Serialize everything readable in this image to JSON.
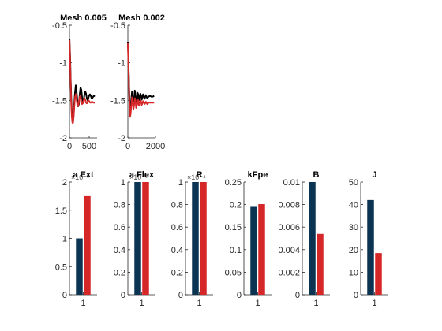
{
  "figure": {
    "background": "#ffffff",
    "axis_color": "#262626"
  },
  "chart_data": [
    {
      "type": "line",
      "title": "Mesh 0.005",
      "xlim": [
        0,
        700
      ],
      "ylim": [
        -2,
        -0.5
      ],
      "xticks": [
        0,
        500
      ],
      "xtick_labels": [
        "0",
        "500"
      ],
      "yticks": [
        -2,
        -1.5,
        -1,
        -0.5
      ],
      "ytick_labels": [
        "-2",
        "-1.5",
        "-1",
        "-0.5"
      ],
      "series": [
        {
          "color": "#000000",
          "x": [
            0,
            15,
            30,
            45,
            60,
            75,
            90,
            105,
            120,
            140,
            160,
            180,
            200,
            220,
            240,
            260,
            280,
            300,
            320,
            340,
            360,
            380,
            400,
            420,
            440,
            460,
            480,
            500,
            520,
            540,
            560,
            580,
            600,
            620,
            640
          ],
          "y": [
            -0.68,
            -0.9,
            -1.2,
            -1.48,
            -1.65,
            -1.75,
            -1.77,
            -1.7,
            -1.55,
            -1.4,
            -1.3,
            -1.38,
            -1.5,
            -1.58,
            -1.55,
            -1.42,
            -1.33,
            -1.36,
            -1.46,
            -1.52,
            -1.5,
            -1.42,
            -1.38,
            -1.41,
            -1.47,
            -1.5,
            -1.47,
            -1.43,
            -1.42,
            -1.44,
            -1.47,
            -1.47,
            -1.45,
            -1.44,
            -1.45
          ]
        },
        {
          "color": "#d62728",
          "x": [
            0,
            15,
            30,
            45,
            60,
            75,
            90,
            105,
            120,
            140,
            160,
            180,
            200,
            220,
            240,
            260,
            280,
            300,
            320,
            340,
            360,
            380,
            400,
            420,
            440,
            460,
            480,
            500,
            520,
            540,
            560,
            580,
            600,
            620,
            640
          ],
          "y": [
            -0.7,
            -0.95,
            -1.25,
            -1.55,
            -1.72,
            -1.8,
            -1.8,
            -1.72,
            -1.6,
            -1.46,
            -1.42,
            -1.48,
            -1.56,
            -1.58,
            -1.52,
            -1.45,
            -1.44,
            -1.5,
            -1.55,
            -1.54,
            -1.5,
            -1.47,
            -1.49,
            -1.53,
            -1.54,
            -1.52,
            -1.5,
            -1.51,
            -1.53,
            -1.53,
            -1.52,
            -1.52,
            -1.53,
            -1.53,
            -1.53
          ]
        }
      ]
    },
    {
      "type": "line",
      "title": "Mesh 0.002",
      "xlim": [
        0,
        2000
      ],
      "ylim": [
        -2,
        -0.5
      ],
      "xticks": [
        0,
        2000
      ],
      "xtick_labels": [
        "0",
        "2000"
      ],
      "yticks": [
        -2,
        -1.5,
        -1,
        -0.5
      ],
      "ytick_labels": [
        "-2",
        "-1.5",
        "-1",
        "-0.5"
      ],
      "series": [
        {
          "color": "#000000",
          "x": [
            0,
            40,
            80,
            120,
            160,
            200,
            250,
            300,
            350,
            400,
            450,
            500,
            550,
            600,
            650,
            700,
            750,
            800,
            850,
            900,
            950,
            1000,
            1050,
            1100,
            1150,
            1200,
            1250,
            1300,
            1350,
            1400,
            1500,
            1600,
            1700,
            1800,
            1900
          ],
          "y": [
            -0.72,
            -0.95,
            -1.25,
            -1.52,
            -1.65,
            -1.6,
            -1.48,
            -1.38,
            -1.45,
            -1.55,
            -1.48,
            -1.37,
            -1.42,
            -1.53,
            -1.5,
            -1.4,
            -1.42,
            -1.5,
            -1.47,
            -1.41,
            -1.43,
            -1.49,
            -1.46,
            -1.42,
            -1.44,
            -1.48,
            -1.46,
            -1.43,
            -1.45,
            -1.47,
            -1.45,
            -1.44,
            -1.45,
            -1.45,
            -1.44
          ]
        },
        {
          "color": "#d62728",
          "x": [
            0,
            40,
            80,
            120,
            160,
            200,
            250,
            300,
            350,
            400,
            450,
            500,
            550,
            600,
            650,
            700,
            750,
            800,
            850,
            900,
            950,
            1000,
            1050,
            1100,
            1150,
            1200,
            1250,
            1300,
            1350,
            1400,
            1500,
            1600,
            1700,
            1800,
            1900
          ],
          "y": [
            -0.74,
            -1.0,
            -1.3,
            -1.58,
            -1.72,
            -1.68,
            -1.56,
            -1.46,
            -1.52,
            -1.62,
            -1.56,
            -1.47,
            -1.5,
            -1.6,
            -1.57,
            -1.49,
            -1.5,
            -1.57,
            -1.55,
            -1.5,
            -1.51,
            -1.56,
            -1.54,
            -1.51,
            -1.52,
            -1.55,
            -1.54,
            -1.52,
            -1.53,
            -1.55,
            -1.53,
            -1.53,
            -1.53,
            -1.53,
            -1.53
          ]
        }
      ]
    },
    {
      "type": "bar",
      "title": "a Ext",
      "exponent_label": "×10⁻³",
      "categories": [
        "1"
      ],
      "ylim": [
        0,
        2
      ],
      "yticks": [
        0,
        0.5,
        1,
        1.5,
        2
      ],
      "ytick_labels": [
        "0",
        "0.5",
        "1",
        "1.5",
        "2"
      ],
      "series": [
        {
          "color": "#0b3452",
          "values": [
            1.0
          ]
        },
        {
          "color": "#d62728",
          "values": [
            1.75
          ]
        }
      ]
    },
    {
      "type": "bar",
      "title": "a Flex",
      "exponent_label": "×10⁻³",
      "categories": [
        "1"
      ],
      "ylim": [
        0,
        1
      ],
      "yticks": [
        0,
        0.2,
        0.4,
        0.6,
        0.8,
        1
      ],
      "ytick_labels": [
        "0",
        "0.2",
        "0.4",
        "0.6",
        "0.8",
        "1"
      ],
      "series": [
        {
          "color": "#0b3452",
          "values": [
            1.0
          ]
        },
        {
          "color": "#d62728",
          "values": [
            1.0
          ]
        }
      ]
    },
    {
      "type": "bar",
      "title": "R",
      "exponent_label": "×10⁻⁴",
      "categories": [
        "1"
      ],
      "ylim": [
        0,
        1
      ],
      "yticks": [
        0,
        0.2,
        0.4,
        0.6,
        0.8,
        1
      ],
      "ytick_labels": [
        "0",
        "0.2",
        "0.4",
        "0.6",
        "0.8",
        "1"
      ],
      "series": [
        {
          "color": "#0b3452",
          "values": [
            1.0
          ]
        },
        {
          "color": "#d62728",
          "values": [
            1.0
          ]
        }
      ]
    },
    {
      "type": "bar",
      "title": "kFpe",
      "categories": [
        "1"
      ],
      "ylim": [
        0,
        0.25
      ],
      "yticks": [
        0,
        0.05,
        0.1,
        0.15,
        0.2,
        0.25
      ],
      "ytick_labels": [
        "0",
        "0.05",
        "0.1",
        "0.15",
        "0.2",
        "0.25"
      ],
      "series": [
        {
          "color": "#0b3452",
          "values": [
            0.195
          ]
        },
        {
          "color": "#d62728",
          "values": [
            0.201
          ]
        }
      ]
    },
    {
      "type": "bar",
      "title": "B",
      "categories": [
        "1"
      ],
      "ylim": [
        0,
        0.01
      ],
      "yticks": [
        0,
        0.002,
        0.004,
        0.006,
        0.008,
        0.01
      ],
      "ytick_labels": [
        "0",
        "0.002",
        "0.004",
        "0.006",
        "0.008",
        "0.01"
      ],
      "series": [
        {
          "color": "#0b3452",
          "values": [
            0.01
          ]
        },
        {
          "color": "#d62728",
          "values": [
            0.0054
          ]
        }
      ]
    },
    {
      "type": "bar",
      "title": "J",
      "categories": [
        "1"
      ],
      "ylim": [
        0,
        50
      ],
      "yticks": [
        0,
        10,
        20,
        30,
        40,
        50
      ],
      "ytick_labels": [
        "0",
        "10",
        "20",
        "30",
        "40",
        "50"
      ],
      "series": [
        {
          "color": "#0b3452",
          "values": [
            42
          ]
        },
        {
          "color": "#d62728",
          "values": [
            18.5
          ]
        }
      ]
    }
  ]
}
